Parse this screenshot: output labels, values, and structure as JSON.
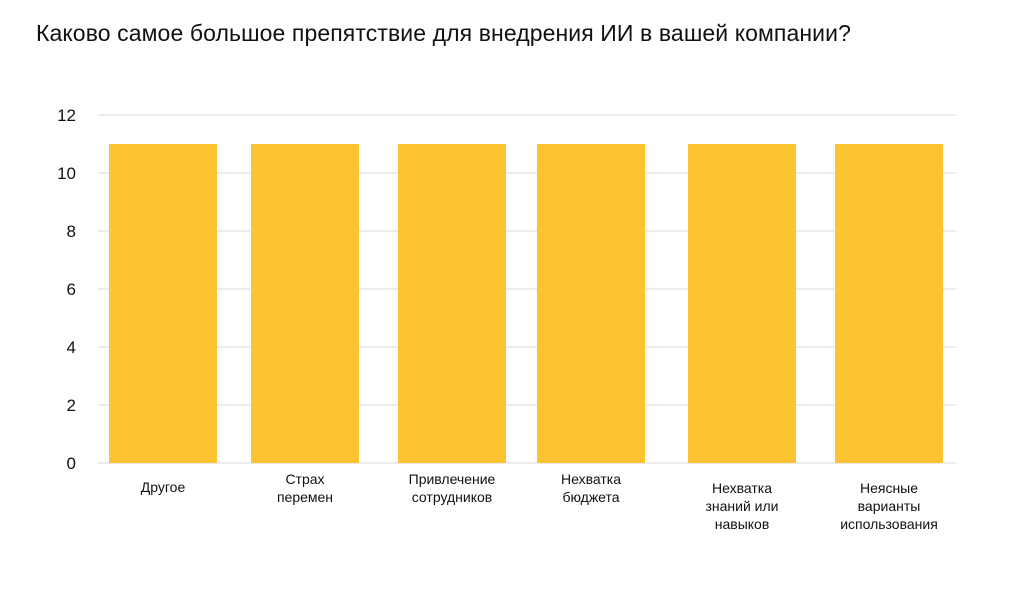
{
  "chart_data": {
    "type": "bar",
    "title": "Каково самое большое препятствие для внедрения ИИ в вашей компании?",
    "xlabel": "",
    "ylabel": "",
    "categories": [
      [
        "Другое"
      ],
      [
        "Страх",
        "перемен"
      ],
      [
        "Привлечение",
        "сотрудников"
      ],
      [
        "Нехватка",
        "бюджета"
      ],
      [
        "Нехватка",
        "знаний или",
        "навыков"
      ],
      [
        "Неясные",
        "варианты",
        "использования"
      ]
    ],
    "values": [
      11,
      11,
      11,
      11,
      11,
      11
    ],
    "ylim": [
      0,
      12
    ],
    "yticks": [
      0,
      2,
      4,
      6,
      8,
      10,
      12
    ],
    "grid": true,
    "legend": "none",
    "colors": {
      "bar": "#FCC431",
      "grid": "#D9D9D9",
      "text": "#111111"
    }
  }
}
